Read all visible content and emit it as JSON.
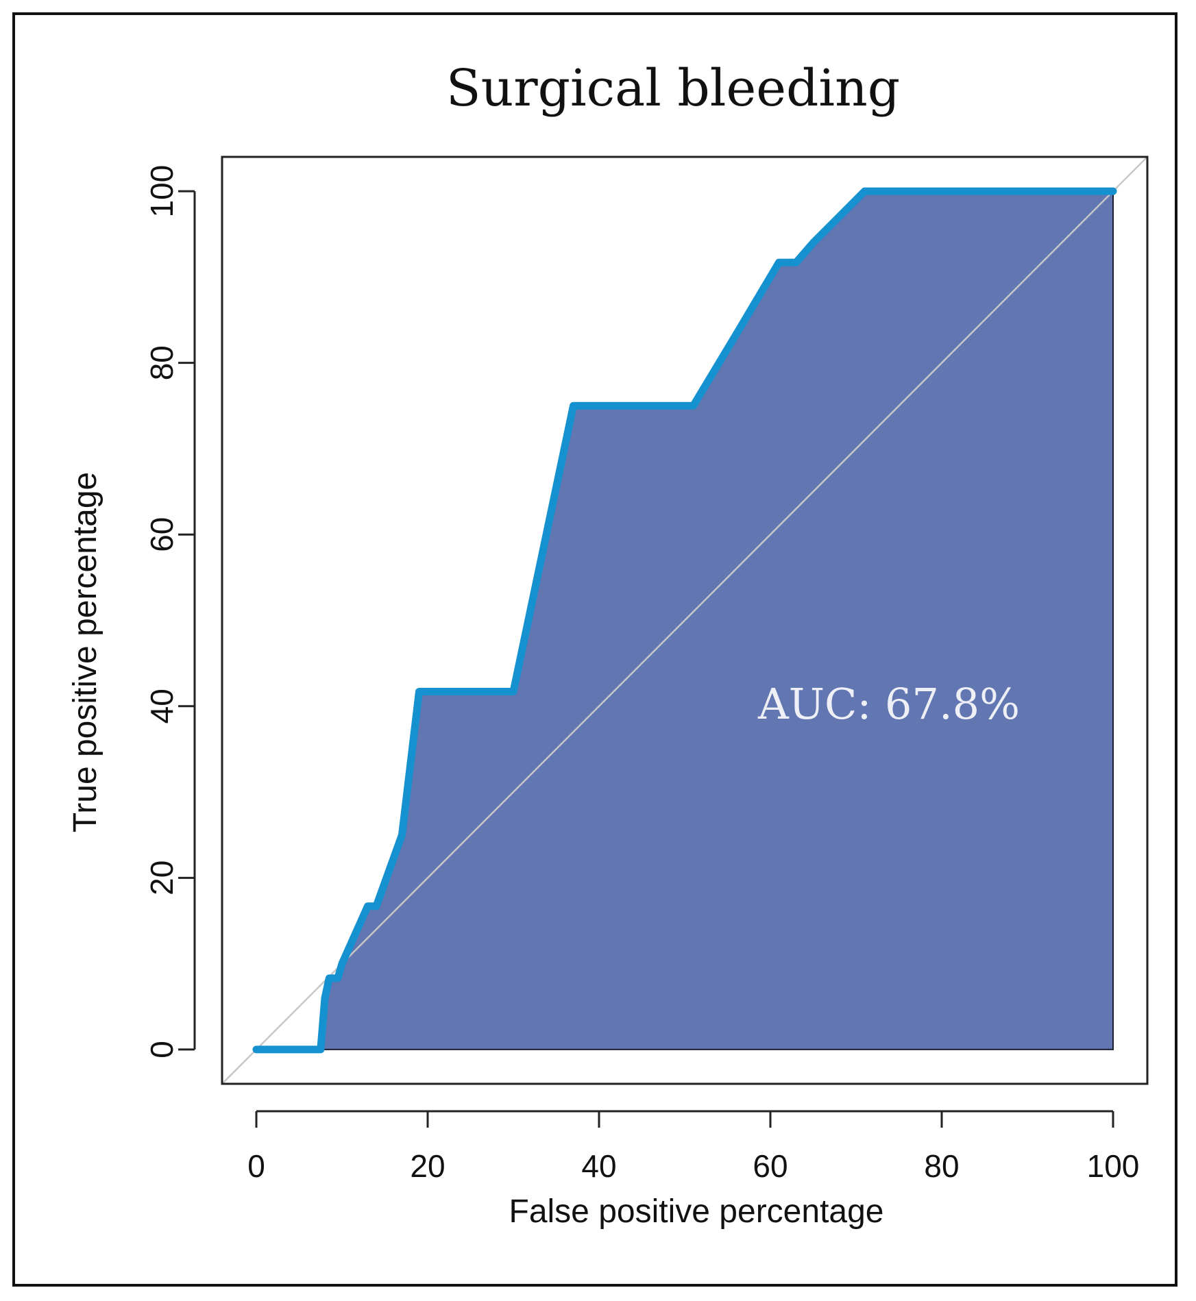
{
  "chart_data": {
    "type": "area",
    "title": "Surgical bleeding",
    "xlabel": "False positive percentage",
    "ylabel": "True positive percentage",
    "xlim": [
      -4,
      104
    ],
    "ylim": [
      -4,
      104
    ],
    "xticks": [
      0,
      20,
      40,
      60,
      80,
      100
    ],
    "yticks": [
      0,
      20,
      40,
      60,
      80,
      100
    ],
    "series": [
      {
        "name": "ROC curve",
        "x": [
          0,
          7.5,
          8,
          8.5,
          9.5,
          10,
          13,
          14,
          17,
          19,
          30,
          37,
          51,
          56,
          61,
          63,
          65,
          67,
          71,
          100
        ],
        "y": [
          0,
          0,
          6,
          8.3,
          8.3,
          10,
          16.7,
          16.7,
          25,
          41.7,
          41.7,
          75,
          75,
          83.3,
          91.7,
          91.7,
          94,
          96,
          100,
          100
        ]
      }
    ],
    "reference_line": {
      "x": [
        -4,
        104
      ],
      "y": [
        -4,
        104
      ]
    },
    "annotation": "AUC: 67.8%",
    "colors": {
      "fill": "#6276b2",
      "line": "#1691d0",
      "reference": "#c7c7c7",
      "annotation": "#eef0f6",
      "axis": "#222222"
    }
  }
}
